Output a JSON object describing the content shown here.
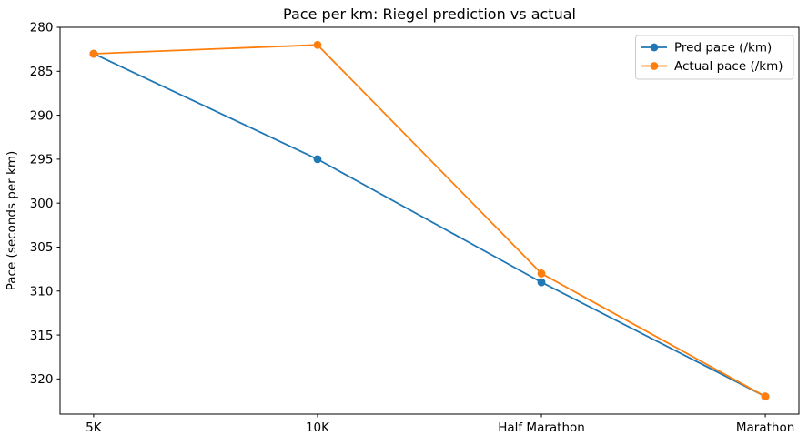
{
  "figure": {
    "background": "#ffffff"
  },
  "chart_data": {
    "type": "line",
    "title": "Pace per km: Riegel prediction vs actual",
    "xlabel": "",
    "ylabel": "Pace (seconds per km)",
    "categories": [
      "5K",
      "10K",
      "Half Marathon",
      "Marathon"
    ],
    "series": [
      {
        "name": "Pred pace (/km)",
        "color": "#1f77b4",
        "values": [
          283,
          295,
          309,
          322
        ]
      },
      {
        "name": "Actual pace (/km)",
        "color": "#ff7f0e",
        "values": [
          283,
          282,
          308,
          322
        ]
      }
    ],
    "y_ticks": [
      280,
      285,
      290,
      295,
      300,
      305,
      310,
      315,
      320
    ],
    "ylim": [
      280,
      324
    ],
    "y_axis_inverted": true,
    "grid": false,
    "legend_position": "upper-right",
    "axis_color": "#000000",
    "legend_border_color": "#cccccc",
    "legend_background": "#ffffff"
  }
}
